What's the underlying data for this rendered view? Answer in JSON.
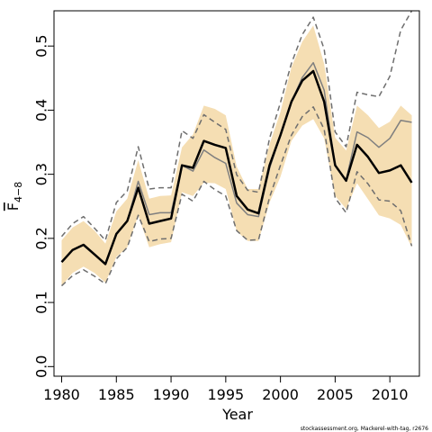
{
  "chart_data": {
    "type": "line",
    "xlabel": "Year",
    "ylabel_main": "F",
    "ylabel_sub": "4−8",
    "footnote": "stockassessment.org, Mackerel-with-tag, r2676",
    "xlim": [
      1979.3,
      2012.7
    ],
    "ylim": [
      -0.015,
      0.555
    ],
    "x_ticks": [
      1980,
      1985,
      1990,
      1995,
      2000,
      2005,
      2010
    ],
    "y_ticks": [
      0.0,
      0.1,
      0.2,
      0.3,
      0.4,
      0.5
    ],
    "y_tick_labels": [
      "0.0",
      "0.1",
      "0.2",
      "0.3",
      "0.4",
      "0.5"
    ],
    "x": [
      1980,
      1981,
      1982,
      1983,
      1984,
      1985,
      1986,
      1987,
      1988,
      1989,
      1990,
      1991,
      1992,
      1993,
      1994,
      1995,
      1996,
      1997,
      1998,
      1999,
      2000,
      2001,
      2002,
      2003,
      2004,
      2005,
      2006,
      2007,
      2008,
      2009,
      2010,
      2011,
      2012
    ],
    "series": [
      {
        "role": "confidence-band",
        "color": "#f5deb3",
        "upper": [
          0.197,
          0.217,
          0.227,
          0.212,
          0.192,
          0.242,
          0.262,
          0.322,
          0.262,
          0.266,
          0.267,
          0.342,
          0.362,
          0.407,
          0.402,
          0.392,
          0.312,
          0.277,
          0.277,
          0.347,
          0.397,
          0.467,
          0.507,
          0.532,
          0.472,
          0.357,
          0.337,
          0.407,
          0.392,
          0.372,
          0.382,
          0.407,
          0.392
        ],
        "lower": [
          0.126,
          0.146,
          0.156,
          0.146,
          0.131,
          0.171,
          0.186,
          0.236,
          0.186,
          0.191,
          0.194,
          0.272,
          0.266,
          0.287,
          0.286,
          0.277,
          0.211,
          0.196,
          0.196,
          0.256,
          0.296,
          0.352,
          0.376,
          0.386,
          0.356,
          0.266,
          0.246,
          0.286,
          0.261,
          0.236,
          0.231,
          0.221,
          0.186
        ]
      },
      {
        "role": "estimate",
        "color": "#000000",
        "values": [
          0.163,
          0.182,
          0.19,
          0.175,
          0.16,
          0.207,
          0.227,
          0.279,
          0.223,
          0.227,
          0.231,
          0.314,
          0.31,
          0.352,
          0.346,
          0.341,
          0.266,
          0.245,
          0.239,
          0.314,
          0.361,
          0.413,
          0.446,
          0.461,
          0.413,
          0.314,
          0.29,
          0.346,
          0.327,
          0.302,
          0.306,
          0.314,
          0.287
        ]
      },
      {
        "role": "alternative-run",
        "color": "#7f7f7f",
        "values": [
          0.163,
          0.182,
          0.19,
          0.175,
          0.16,
          0.207,
          0.227,
          0.289,
          0.237,
          0.24,
          0.24,
          0.314,
          0.305,
          0.338,
          0.326,
          0.317,
          0.255,
          0.237,
          0.234,
          0.309,
          0.361,
          0.413,
          0.451,
          0.474,
          0.431,
          0.314,
          0.291,
          0.366,
          0.357,
          0.342,
          0.356,
          0.384,
          0.381
        ]
      },
      {
        "role": "alternative-ci-upper",
        "color": "#6e6e6e",
        "dashed": true,
        "values": [
          0.203,
          0.223,
          0.234,
          0.216,
          0.197,
          0.256,
          0.274,
          0.343,
          0.277,
          0.279,
          0.279,
          0.368,
          0.356,
          0.393,
          0.381,
          0.37,
          0.299,
          0.275,
          0.272,
          0.356,
          0.412,
          0.473,
          0.518,
          0.545,
          0.495,
          0.366,
          0.343,
          0.428,
          0.424,
          0.421,
          0.453,
          0.525,
          0.555
        ]
      },
      {
        "role": "alternative-ci-lower",
        "color": "#6e6e6e",
        "dashed": true,
        "values": [
          0.126,
          0.142,
          0.151,
          0.141,
          0.129,
          0.168,
          0.186,
          0.236,
          0.195,
          0.199,
          0.2,
          0.269,
          0.258,
          0.289,
          0.276,
          0.266,
          0.212,
          0.197,
          0.198,
          0.264,
          0.314,
          0.361,
          0.39,
          0.405,
          0.37,
          0.263,
          0.24,
          0.304,
          0.285,
          0.26,
          0.258,
          0.243,
          0.188
        ]
      }
    ]
  }
}
